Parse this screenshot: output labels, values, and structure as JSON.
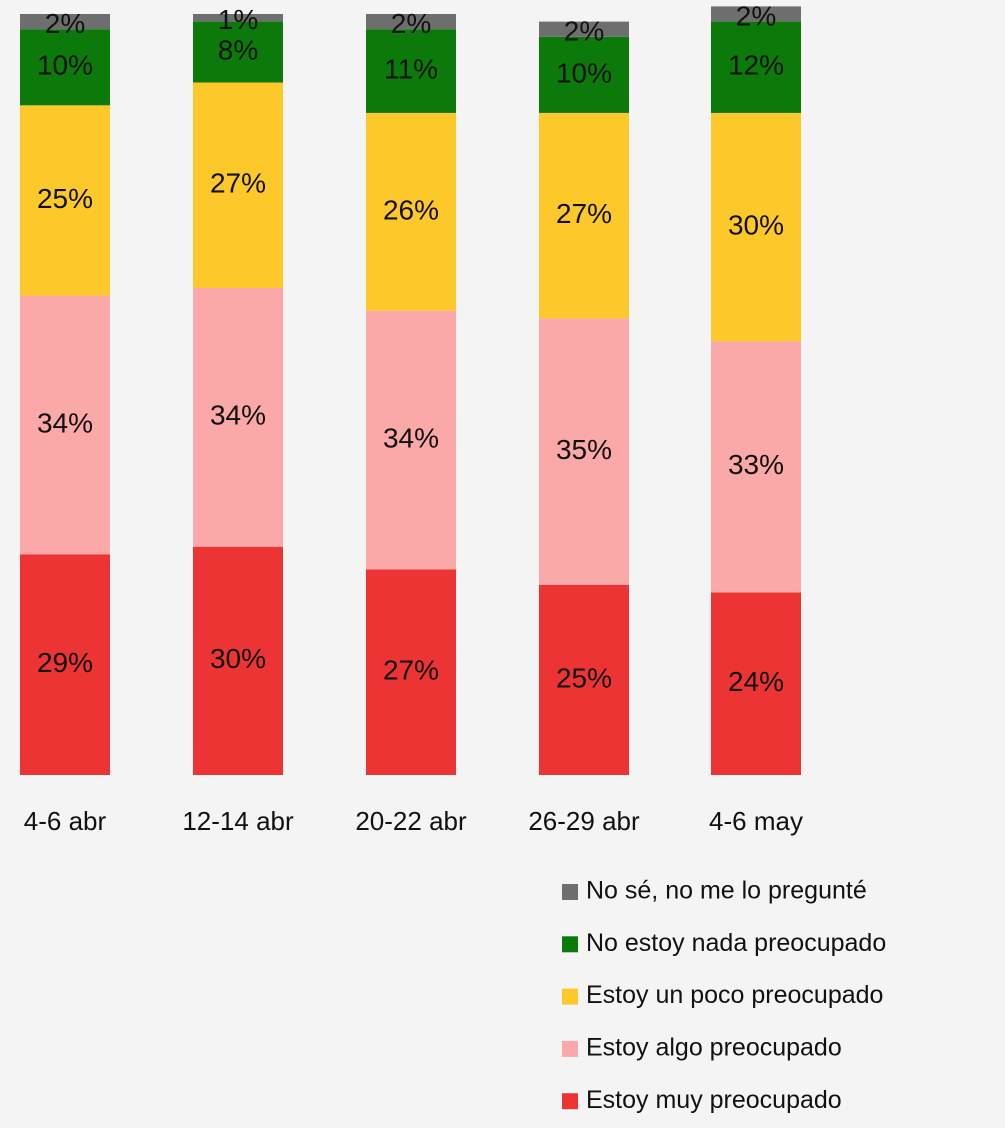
{
  "chart_data": {
    "type": "stacked_bar",
    "categories": [
      "4-6 abr",
      "12-14 abr",
      "20-22 abr",
      "26-29 abr",
      "4-6 may"
    ],
    "ylim": [
      0,
      100
    ],
    "series": [
      {
        "name": "Estoy muy preocupado",
        "color": "#ec3434",
        "values": [
          29,
          30,
          27,
          25,
          24
        ],
        "value_labels": [
          "29%",
          "30%",
          "27%",
          "25%",
          "24%"
        ]
      },
      {
        "name": "Estoy algo preocupado",
        "color": "#fba8a9",
        "values": [
          34,
          34,
          34,
          35,
          33
        ],
        "value_labels": [
          "34%",
          "34%",
          "34%",
          "35%",
          "33%"
        ]
      },
      {
        "name": "Estoy un poco preocupado",
        "color": "#fdc82a",
        "values": [
          25,
          27,
          26,
          27,
          30
        ],
        "value_labels": [
          "25%",
          "27%",
          "26%",
          "27%",
          "30%"
        ]
      },
      {
        "name": "No estoy nada preocupado",
        "color": "#0b7a0b",
        "values": [
          10,
          8,
          11,
          10,
          12
        ],
        "value_labels": [
          "10%",
          "8%",
          "11%",
          "10%",
          "12%"
        ]
      },
      {
        "name": "No sé, no me lo pregunté",
        "color": "#6e6e6e",
        "values": [
          2,
          1,
          2,
          2,
          2
        ],
        "value_labels": [
          "2%",
          "1%",
          "2%",
          "2%",
          "2%"
        ]
      }
    ],
    "legend": "bottom-right"
  }
}
